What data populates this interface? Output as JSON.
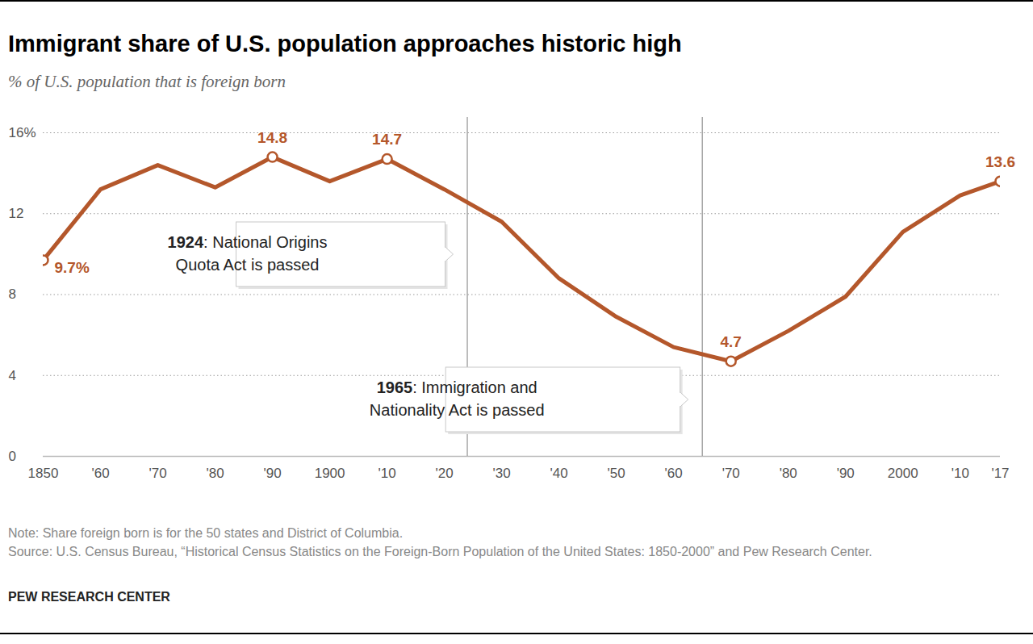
{
  "chart_data": {
    "type": "line",
    "title": "Immigrant share of U.S. population approaches historic high",
    "subtitle": "% of U.S. population that is foreign born",
    "x": [
      1850,
      1860,
      1870,
      1880,
      1890,
      1900,
      1910,
      1920,
      1930,
      1940,
      1950,
      1960,
      1970,
      1980,
      1990,
      2000,
      2010,
      2017
    ],
    "values": [
      9.7,
      13.2,
      14.4,
      13.3,
      14.8,
      13.6,
      14.7,
      13.2,
      11.6,
      8.8,
      6.9,
      5.4,
      4.7,
      6.2,
      7.9,
      11.1,
      12.9,
      13.6
    ],
    "value_labels": [
      "9.7%",
      null,
      null,
      null,
      "14.8",
      null,
      "14.7",
      null,
      null,
      null,
      null,
      null,
      "4.7",
      null,
      null,
      null,
      null,
      "13.6"
    ],
    "color": "#b4572b",
    "marker": "circle",
    "xlim": [
      1850,
      2017
    ],
    "xticks": [
      1850,
      {
        "value": 1860,
        "label": "'60"
      },
      {
        "value": 1870,
        "label": "'70"
      },
      {
        "value": 1880,
        "label": "'80"
      },
      {
        "value": 1890,
        "label": "'90"
      },
      1900,
      {
        "value": 1910,
        "label": "'10"
      },
      {
        "value": 1920,
        "label": "'20"
      },
      {
        "value": 1930,
        "label": "'30"
      },
      {
        "value": 1940,
        "label": "'40"
      },
      {
        "value": 1950,
        "label": "'50"
      },
      {
        "value": 1960,
        "label": "'60"
      },
      {
        "value": 1970,
        "label": "'70"
      },
      {
        "value": 1980,
        "label": "'80"
      },
      {
        "value": 1990,
        "label": "'90"
      },
      2000,
      {
        "value": 2010,
        "label": "'10"
      },
      {
        "value": 2017,
        "label": "'17"
      }
    ],
    "ylim": [
      0,
      16
    ],
    "yticks": [
      0,
      4,
      8,
      12,
      {
        "value": 16,
        "label": "16%"
      }
    ],
    "grid": true,
    "annotations": [
      {
        "x": 1924,
        "lines": [
          "1924: National Origins",
          "Quota Act is passed"
        ]
      },
      {
        "x": 1965,
        "lines": [
          "1965: Immigration and",
          "Nationality Act is passed"
        ]
      }
    ],
    "note": "Note: Share foreign born is for the 50 states and District of Columbia.",
    "source": "Source: U.S. Census Bureau, “Historical Census Statistics on the Foreign-Born Population of the United States: 1850-2000” and Pew Research Center.",
    "credit": "PEW RESEARCH CENTER"
  }
}
